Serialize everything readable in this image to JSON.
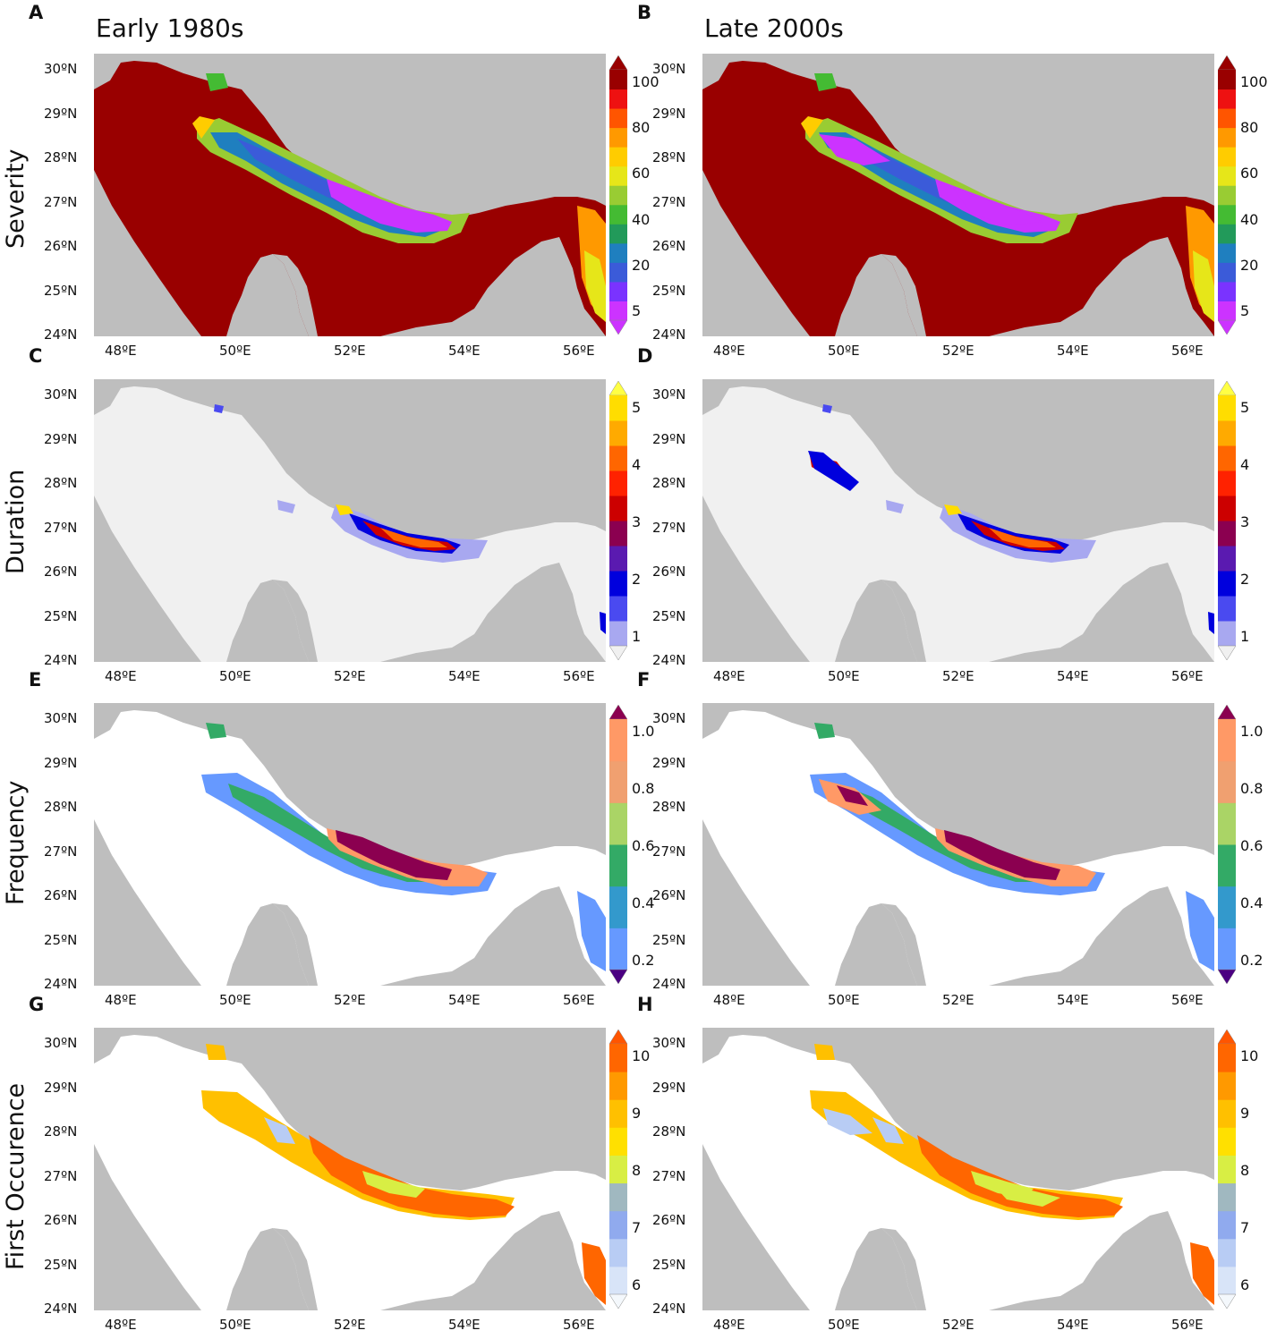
{
  "columns": [
    {
      "letter_top": "A",
      "title": "Early 1980s"
    },
    {
      "letter_top": "B",
      "title": "Late 2000s"
    }
  ],
  "panel_letters": [
    "A",
    "B",
    "C",
    "D",
    "E",
    "F",
    "G",
    "H"
  ],
  "rows": [
    {
      "label": "Severity",
      "colorbar": {
        "ticks": [
          "5",
          "20",
          "40",
          "60",
          "80",
          "100"
        ],
        "colors": [
          "#cc33ff",
          "#7a33ff",
          "#3b5bd9",
          "#1f7fbf",
          "#229a5a",
          "#44bb33",
          "#99cc33",
          "#e6e619",
          "#ffcc00",
          "#ff9900",
          "#ff5500",
          "#ee1111",
          "#990000"
        ],
        "extend_low": "#cc33ff",
        "extend_high": "#990000"
      }
    },
    {
      "label": "Duration",
      "colorbar": {
        "ticks": [
          "1",
          "2",
          "3",
          "4",
          "5"
        ],
        "colors": [
          "#a8a8f0",
          "#4a4af0",
          "#0000dd",
          "#5a1ab0",
          "#8b0050",
          "#cc0000",
          "#ff2200",
          "#ff6600",
          "#ffaa00",
          "#ffdd00"
        ],
        "extend_low": "#f0f0f0",
        "extend_high": "#ffff44"
      }
    },
    {
      "label": "Frequency",
      "colorbar": {
        "ticks": [
          "0.2",
          "0.4",
          "0.6",
          "0.8",
          "1.0"
        ],
        "colors": [
          "#6699ff",
          "#3399cc",
          "#33aa66",
          "#aad466",
          "#f0a070",
          "#ff9966"
        ],
        "extend_low": "#4b0082",
        "extend_high": "#8b0050"
      }
    },
    {
      "label": "First Occurence",
      "colorbar": {
        "ticks": [
          "6",
          "7",
          "8",
          "9",
          "10"
        ],
        "colors": [
          "#d8e4f8",
          "#b8ccf4",
          "#90aaee",
          "#a0b8c0",
          "#d8ee44",
          "#ffe000",
          "#ffc000",
          "#ff9900",
          "#ff6600"
        ],
        "extend_low": "#f4f8fc",
        "extend_high": "#ff5500"
      }
    }
  ],
  "lat_ticks": [
    "30ºN",
    "29ºN",
    "28ºN",
    "27ºN",
    "26ºN",
    "25ºN",
    "24ºN"
  ],
  "lon_ticks": [
    "48ºE",
    "50ºE",
    "52ºE",
    "54ºE",
    "56ºE"
  ],
  "map_colors": {
    "land": "#bebebe",
    "sea_severity": "#990000",
    "sea_blank_duration": "#f0f0f0",
    "sea_blank_other": "#ffffff"
  }
}
